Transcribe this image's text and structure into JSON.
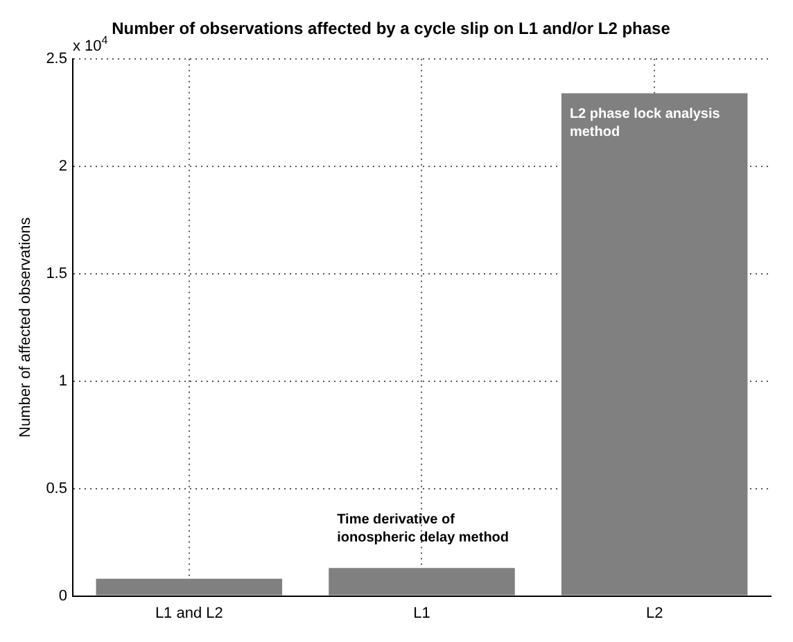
{
  "chart_data": {
    "type": "bar",
    "title": "Number of observations affected by a cycle slip on L1 and/or L2 phase",
    "ylabel": "Number of affected observations",
    "categories": [
      "L1 and L2",
      "L1",
      "L2"
    ],
    "values": [
      0.08,
      0.13,
      2.34
    ],
    "color": "#808080",
    "ylim": [
      0,
      2.5
    ],
    "yticks": [
      0,
      0.5,
      1,
      1.5,
      2,
      2.5
    ],
    "grid": true,
    "annotations": [
      "x 10$^{4}$",
      "Time derivative of ionospheric delay method",
      "L2 phase lock analysis method"
    ]
  }
}
